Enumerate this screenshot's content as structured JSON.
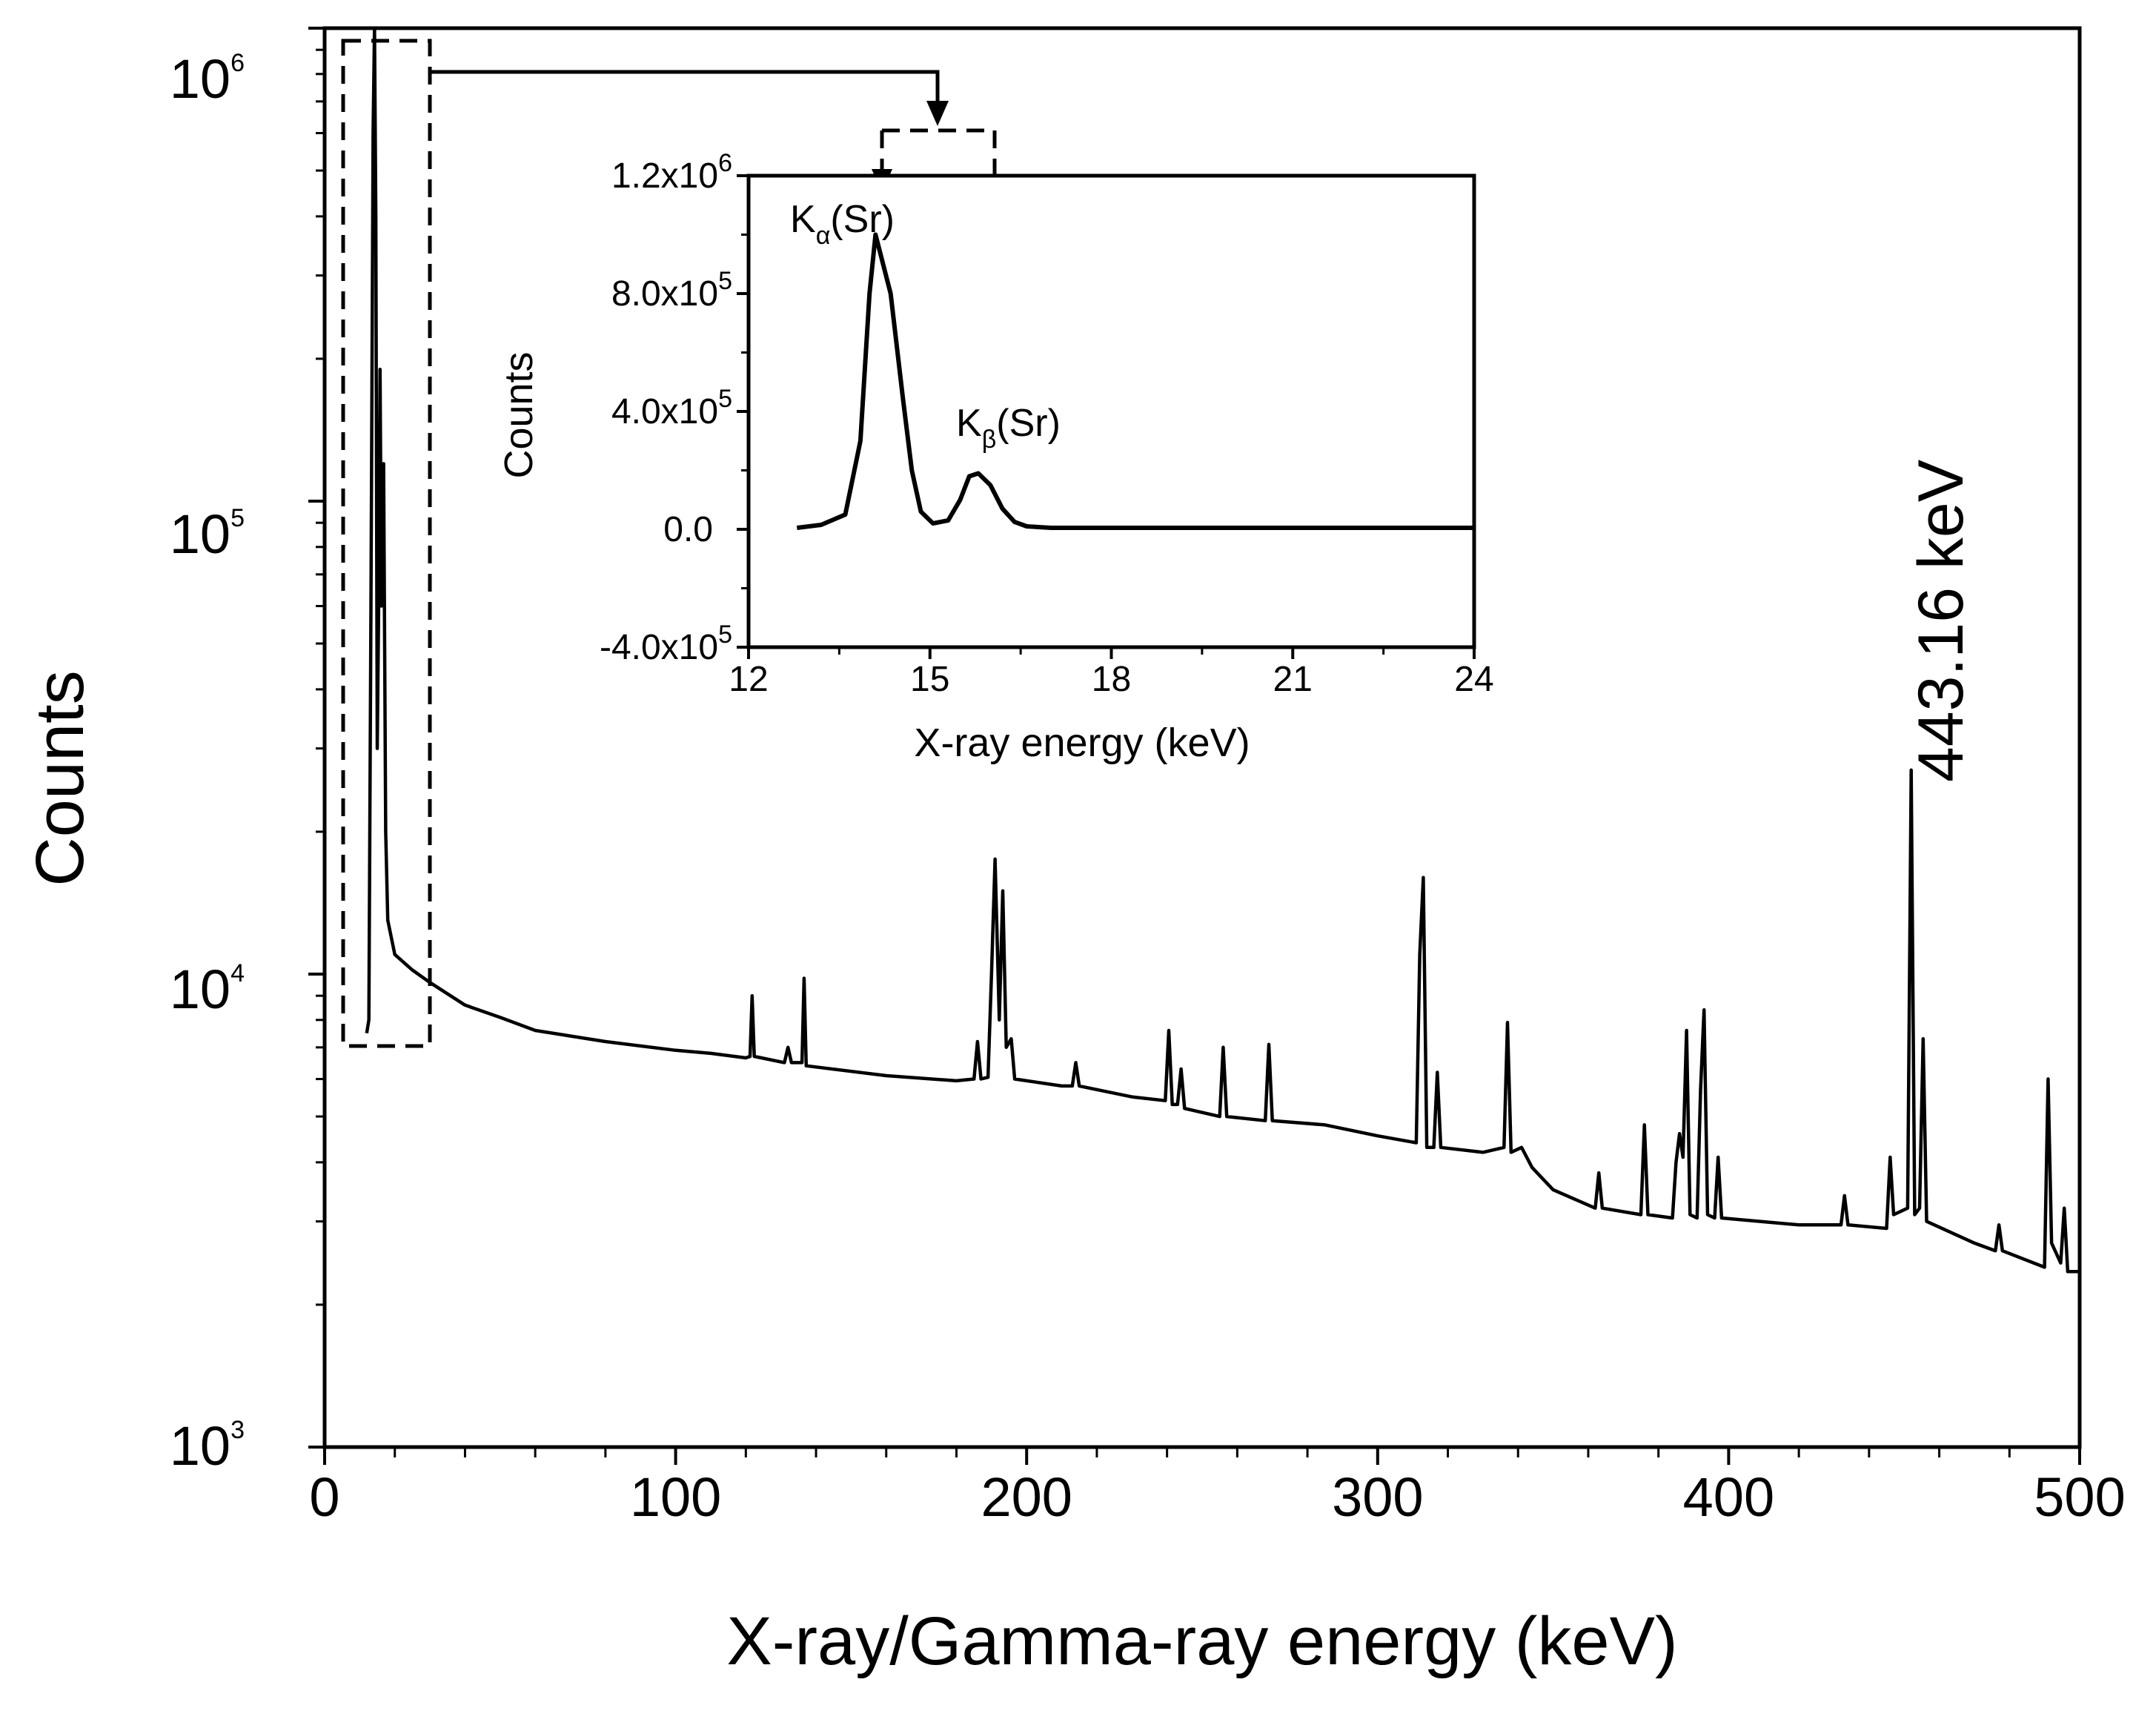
{
  "chart_data": [
    {
      "id": "main",
      "type": "line",
      "title": "",
      "xlabel": "X-ray/Gamma-ray energy (keV)",
      "ylabel": "Counts",
      "xlim": [
        0,
        500
      ],
      "ylim": [
        1000,
        1000000
      ],
      "yscale": "log",
      "x_ticks": [
        0,
        100,
        200,
        300,
        400,
        500
      ],
      "x_tick_labels": [
        "0",
        "100",
        "200",
        "300",
        "400",
        "500"
      ],
      "y_ticks": [
        1000,
        10000,
        100000,
        1000000
      ],
      "y_tick_labels": [
        {
          "base": "10",
          "exp": "3"
        },
        {
          "base": "10",
          "exp": "4"
        },
        {
          "base": "10",
          "exp": "5"
        },
        {
          "base": "10",
          "exp": "6"
        }
      ],
      "annotation": {
        "text": "443.16 keV",
        "x": 452,
        "y": 27000
      },
      "zoom_box": {
        "x_range": [
          6,
          31
        ],
        "y_range": [
          7200,
          1150000
        ]
      },
      "series": [
        {
          "name": "spectrum",
          "points": [
            [
              12,
              7500
            ],
            [
              12.6,
              8000
            ],
            [
              13.2,
              60000
            ],
            [
              13.8,
              600000
            ],
            [
              14.2,
              1000000
            ],
            [
              14.6,
              400000
            ],
            [
              15.0,
              30000
            ],
            [
              15.4,
              60000
            ],
            [
              15.8,
              190000
            ],
            [
              16.2,
              60000
            ],
            [
              16.8,
              120000
            ],
            [
              17.4,
              20000
            ],
            [
              18,
              13000
            ],
            [
              20,
              11000
            ],
            [
              25,
              10200
            ],
            [
              30,
              9600
            ],
            [
              40,
              8600
            ],
            [
              50,
              8100
            ],
            [
              60,
              7600
            ],
            [
              80,
              7200
            ],
            [
              100,
              6900
            ],
            [
              110,
              6800
            ],
            [
              120,
              6650
            ],
            [
              121.2,
              6700
            ],
            [
              121.8,
              9000
            ],
            [
              122.4,
              6700
            ],
            [
              131,
              6500
            ],
            [
              132,
              7000
            ],
            [
              133,
              6500
            ],
            [
              136,
              6500
            ],
            [
              136.6,
              9800
            ],
            [
              137.2,
              6400
            ],
            [
              160,
              6100
            ],
            [
              180,
              5950
            ],
            [
              185,
              6000
            ],
            [
              186,
              7200
            ],
            [
              187,
              6000
            ],
            [
              189,
              6050
            ],
            [
              190,
              10000
            ],
            [
              191,
              17500
            ],
            [
              192.2,
              8000
            ],
            [
              193.2,
              15000
            ],
            [
              194.2,
              7000
            ],
            [
              195.6,
              7300
            ],
            [
              196.6,
              6000
            ],
            [
              210,
              5800
            ],
            [
              213,
              5800
            ],
            [
              214,
              6500
            ],
            [
              215,
              5800
            ],
            [
              230,
              5500
            ],
            [
              239.5,
              5400
            ],
            [
              240.5,
              7600
            ],
            [
              241.5,
              5300
            ],
            [
              243,
              5300
            ],
            [
              244,
              6300
            ],
            [
              245,
              5200
            ],
            [
              255,
              5000
            ],
            [
              256,
              7000
            ],
            [
              257,
              5000
            ],
            [
              268,
              4900
            ],
            [
              269,
              7100
            ],
            [
              270,
              4900
            ],
            [
              285,
              4800
            ],
            [
              300,
              4550
            ],
            [
              311,
              4400
            ],
            [
              312,
              11000
            ],
            [
              313,
              16000
            ],
            [
              314,
              4300
            ],
            [
              316,
              4300
            ],
            [
              317,
              6200
            ],
            [
              318,
              4300
            ],
            [
              330,
              4200
            ],
            [
              336,
              4300
            ],
            [
              337,
              7900
            ],
            [
              338,
              4200
            ],
            [
              341,
              4300
            ],
            [
              344,
              3900
            ],
            [
              350,
              3500
            ],
            [
              362,
              3200
            ],
            [
              363,
              3800
            ],
            [
              364,
              3200
            ],
            [
              375,
              3100
            ],
            [
              376,
              4800
            ],
            [
              377,
              3100
            ],
            [
              384,
              3050
            ],
            [
              385,
              4000
            ],
            [
              386,
              4600
            ],
            [
              387,
              4100
            ],
            [
              388,
              7600
            ],
            [
              389,
              3100
            ],
            [
              391,
              3050
            ],
            [
              392,
              5700
            ],
            [
              393,
              8400
            ],
            [
              394,
              3100
            ],
            [
              396,
              3050
            ],
            [
              397,
              4100
            ],
            [
              398,
              3050
            ],
            [
              420,
              2950
            ],
            [
              432,
              2950
            ],
            [
              433,
              3400
            ],
            [
              434,
              2950
            ],
            [
              445,
              2900
            ],
            [
              446,
              4100
            ],
            [
              447,
              3100
            ],
            [
              451,
              3200
            ],
            [
              452,
              27000
            ],
            [
              453,
              3100
            ],
            [
              454.4,
              3200
            ],
            [
              455.4,
              7300
            ],
            [
              456.4,
              3000
            ],
            [
              470,
              2700
            ],
            [
              476,
              2600
            ],
            [
              477,
              2950
            ],
            [
              478,
              2600
            ],
            [
              490,
              2400
            ],
            [
              491,
              6000
            ],
            [
              492,
              2700
            ],
            [
              494.6,
              2450
            ],
            [
              495.6,
              3200
            ],
            [
              496.6,
              2350
            ],
            [
              500,
              2350
            ]
          ]
        }
      ]
    },
    {
      "id": "inset",
      "type": "line",
      "title": "",
      "xlabel": "X-ray energy (keV)",
      "ylabel": "Counts",
      "xlim": [
        12,
        24
      ],
      "ylim": [
        -400000,
        1200000
      ],
      "x_ticks": [
        12,
        15,
        18,
        21,
        24
      ],
      "x_tick_labels": [
        "12",
        "15",
        "18",
        "21",
        "24"
      ],
      "y_ticks": [
        -400000,
        0,
        400000,
        800000,
        1200000
      ],
      "y_tick_labels": [
        {
          "base": "-4.0x10",
          "exp": "5"
        },
        {
          "base": "0.0",
          "exp": ""
        },
        {
          "base": "4.0x10",
          "exp": "5"
        },
        {
          "base": "8.0x10",
          "exp": "5"
        },
        {
          "base": "1.2x10",
          "exp": "6"
        }
      ],
      "peak_labels": [
        {
          "text": "K",
          "sub": "α",
          "suffix": "(Sr)",
          "x": 14.1,
          "y": 1000000
        },
        {
          "text": "K",
          "sub": "β",
          "suffix": "(Sr)",
          "x": 15.8,
          "y": 190000
        }
      ],
      "series": [
        {
          "name": "spectrum-zoom",
          "points": [
            [
              12.8,
              5000
            ],
            [
              13.2,
              15000
            ],
            [
              13.6,
              50000
            ],
            [
              13.85,
              300000
            ],
            [
              14.0,
              800000
            ],
            [
              14.1,
              1000000
            ],
            [
              14.35,
              800000
            ],
            [
              14.55,
              450000
            ],
            [
              14.7,
              200000
            ],
            [
              14.85,
              60000
            ],
            [
              15.05,
              20000
            ],
            [
              15.3,
              30000
            ],
            [
              15.5,
              100000
            ],
            [
              15.65,
              180000
            ],
            [
              15.8,
              190000
            ],
            [
              16.0,
              150000
            ],
            [
              16.2,
              70000
            ],
            [
              16.4,
              25000
            ],
            [
              16.6,
              10000
            ],
            [
              17.0,
              5000
            ],
            [
              18,
              5000
            ],
            [
              24,
              5000
            ]
          ]
        }
      ]
    }
  ]
}
